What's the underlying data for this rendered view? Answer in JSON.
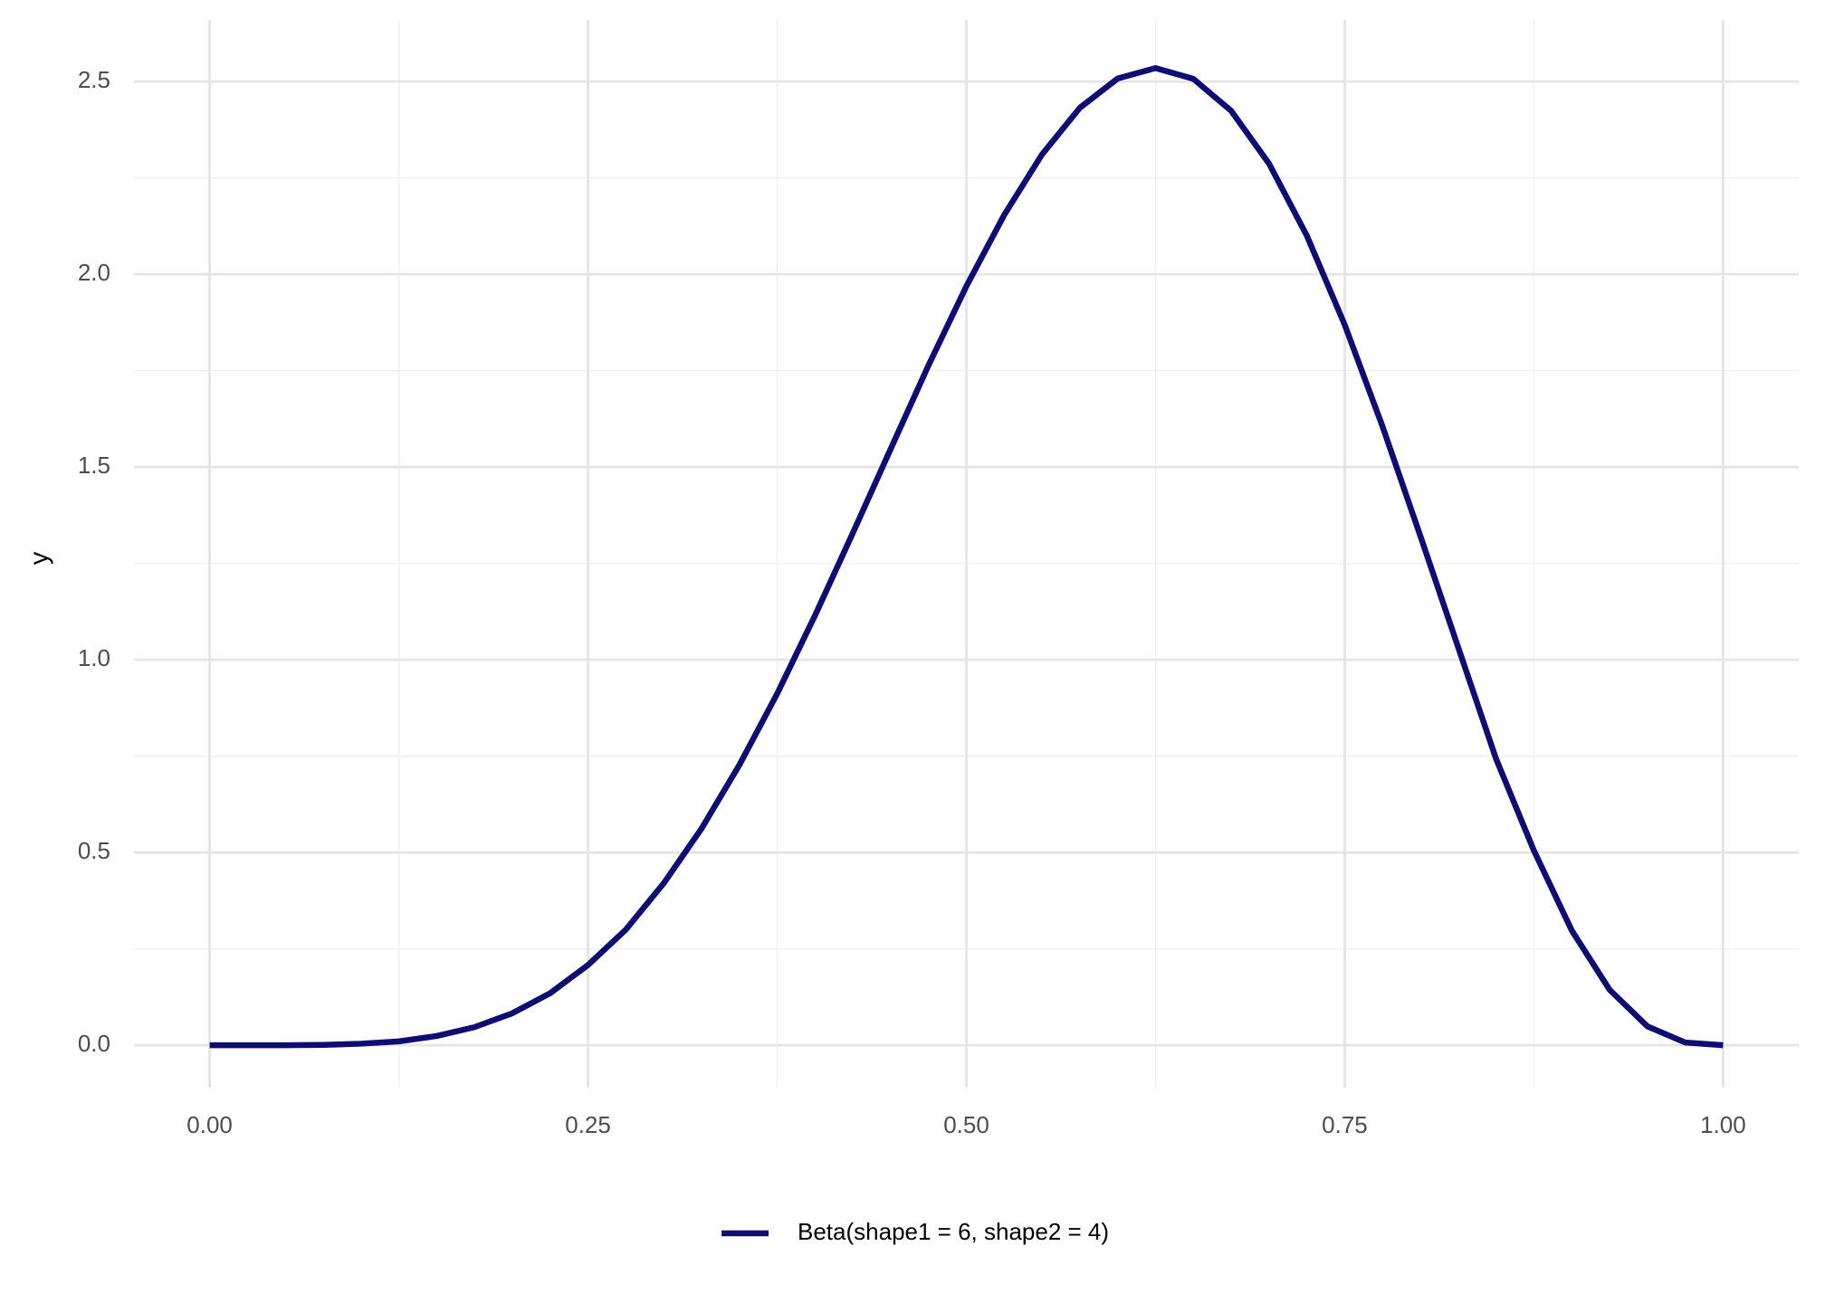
{
  "chart_data": {
    "type": "line",
    "ylabel": "y",
    "x": [
      0,
      0.025,
      0.05,
      0.075,
      0.1,
      0.125,
      0.15,
      0.175,
      0.2,
      0.225,
      0.25,
      0.275,
      0.3,
      0.325,
      0.35,
      0.375,
      0.4,
      0.425,
      0.45,
      0.475,
      0.5,
      0.525,
      0.55,
      0.575,
      0.6,
      0.625,
      0.65,
      0.675,
      0.7,
      0.725,
      0.75,
      0.775,
      0.8,
      0.825,
      0.85,
      0.875,
      0.9,
      0.925,
      0.95,
      0.975,
      1
    ],
    "series": [
      {
        "name": "Beta(shape1 = 6, shape2 = 4)",
        "color": "#0d0d73",
        "values": [
          0,
          0,
          0,
          0.001,
          0.004,
          0.01,
          0.024,
          0.047,
          0.083,
          0.135,
          0.208,
          0.3,
          0.42,
          0.562,
          0.727,
          0.912,
          1.115,
          1.329,
          1.547,
          1.764,
          1.969,
          2.154,
          2.311,
          2.432,
          2.508,
          2.535,
          2.507,
          2.424,
          2.287,
          2.1,
          1.869,
          1.605,
          1.321,
          1.032,
          0.743,
          0.505,
          0.298,
          0.144,
          0.049,
          0.007,
          0
        ]
      }
    ],
    "xlim": [
      -0.05,
      1.05
    ],
    "ylim": [
      -0.11,
      2.66
    ],
    "xticks": [
      {
        "value": 0,
        "label": "0.00"
      },
      0.25,
      {
        "value": 0.5,
        "label": "0.50"
      },
      0.75,
      {
        "value": 1,
        "label": "1.00"
      }
    ],
    "yticks": [
      {
        "value": 0,
        "label": "0.0"
      },
      0.5,
      {
        "value": 1,
        "label": "1.0"
      },
      1.5,
      {
        "value": 2,
        "label": "2.0"
      },
      2.5
    ],
    "xminor": [
      0.125,
      0.375,
      0.625,
      0.875
    ],
    "yminor": [
      0.25,
      0.75,
      1.25,
      1.75,
      2.25
    ],
    "grid": true,
    "legend": "bottom"
  }
}
